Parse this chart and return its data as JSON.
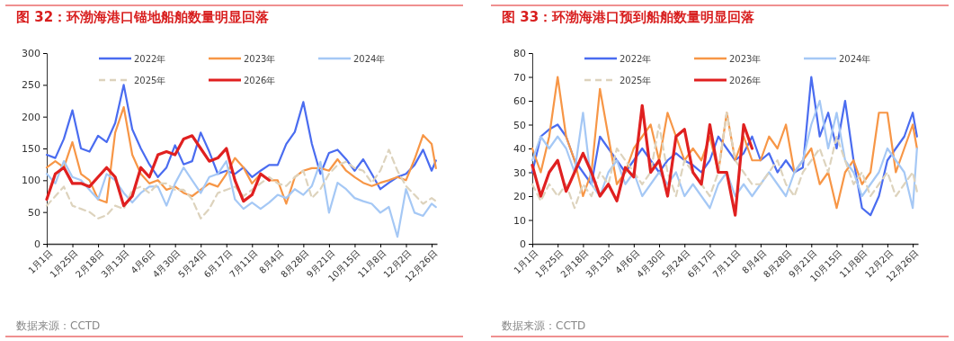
{
  "chart_data": [
    {
      "type": "line",
      "title": "图 32：环渤海港口锚地船舶数量明显回落",
      "annotations": [
        "数据来源：CCTD"
      ],
      "legend": "top",
      "grid": false,
      "x": [
        "--01-01",
        "--01-09",
        "--01-17",
        "--01-25",
        "--02-02",
        "--02-10",
        "--02-18",
        "--02-26",
        "--03-05",
        "--03-13",
        "--03-21",
        "--03-29",
        "--04-06",
        "--04-14",
        "--04-22",
        "--04-30",
        "--05-08",
        "--05-16",
        "--05-24",
        "--06-01",
        "--06-09",
        "--06-17",
        "--06-25",
        "--07-03",
        "--07-11",
        "--07-19",
        "--07-27",
        "--08-04",
        "--08-12",
        "--08-20",
        "--08-28",
        "--09-05",
        "--09-13",
        "--09-21",
        "--09-29",
        "--10-07",
        "--10-15",
        "--10-23",
        "--10-31",
        "--11-08",
        "--11-16",
        "--11-24",
        "--12-02",
        "--12-10",
        "--12-18",
        "--12-26",
        "--12-30"
      ],
      "xlim": [
        "--01-01",
        "--12-31"
      ],
      "xticks": [
        {
          "value": "--01-01",
          "label": "1月1日"
        },
        {
          "value": "--01-25",
          "label": "1月25日"
        },
        {
          "value": "--02-18",
          "label": "2月18日"
        },
        {
          "value": "--03-13",
          "label": "3月13日"
        },
        {
          "value": "--04-06",
          "label": "4月6日"
        },
        {
          "value": "--04-30",
          "label": "4月30日"
        },
        {
          "value": "--05-24",
          "label": "5月24日"
        },
        {
          "value": "--06-17",
          "label": "6月17日"
        },
        {
          "value": "--07-11",
          "label": "7月11日"
        },
        {
          "value": "--08-04",
          "label": "8月4日"
        },
        {
          "value": "--08-28",
          "label": "8月28日"
        },
        {
          "value": "--09-21",
          "label": "9月21日"
        },
        {
          "value": "--10-15",
          "label": "10月15日"
        },
        {
          "value": "--11-08",
          "label": "11月8日"
        },
        {
          "value": "--12-02",
          "label": "12月2日"
        },
        {
          "value": "--12-26",
          "label": "12月26日"
        }
      ],
      "ylim": [
        0,
        300
      ],
      "yticks": [
        0,
        50,
        100,
        150,
        200,
        250,
        300
      ],
      "series": [
        {
          "name": "2022年",
          "color": "#4a6cf0",
          "line_style": "solid",
          "values": [
            140,
            135,
            165,
            210,
            150,
            145,
            170,
            160,
            190,
            250,
            180,
            150,
            125,
            105,
            120,
            155,
            125,
            130,
            175,
            145,
            110,
            115,
            110,
            120,
            105,
            115,
            124,
            124,
            157,
            176,
            223,
            157,
            110,
            143,
            148,
            133,
            115,
            133,
            110,
            86,
            96,
            105,
            110,
            124,
            148,
            115,
            131
          ]
        },
        {
          "name": "2023年",
          "color": "#f79646",
          "line_style": "solid",
          "values": [
            120,
            130,
            120,
            160,
            110,
            100,
            70,
            65,
            175,
            215,
            140,
            110,
            95,
            100,
            85,
            90,
            80,
            75,
            85,
            95,
            90,
            110,
            135,
            120,
            95,
            110,
            100,
            100,
            63,
            105,
            115,
            119,
            119,
            115,
            133,
            115,
            105,
            96,
            91,
            96,
            100,
            105,
            100,
            133,
            171,
            157,
            119
          ]
        },
        {
          "name": "2024年",
          "color": "#a5c8f5",
          "line_style": "solid",
          "values": [
            110,
            95,
            130,
            105,
            100,
            85,
            70,
            110,
            100,
            80,
            65,
            80,
            90,
            90,
            60,
            95,
            120,
            100,
            80,
            105,
            110,
            130,
            70,
            55,
            65,
            55,
            65,
            77,
            72,
            86,
            77,
            91,
            129,
            49,
            96,
            86,
            72,
            67,
            63,
            49,
            58,
            11,
            86,
            49,
            44,
            63,
            58
          ]
        },
        {
          "name": "2025年",
          "color": "#ddd3bd",
          "line_style": "dashed",
          "values": [
            60,
            75,
            90,
            60,
            55,
            50,
            40,
            45,
            60,
            55,
            85,
            90,
            80,
            95,
            95,
            85,
            85,
            70,
            40,
            55,
            80,
            85,
            90,
            75,
            85,
            95,
            105,
            95,
            91,
            105,
            115,
            72,
            86,
            110,
            124,
            129,
            119,
            115,
            96,
            115,
            148,
            115,
            91,
            77,
            63,
            72,
            67
          ]
        },
        {
          "name": "2026年",
          "color": "#e02020",
          "line_style": "solid",
          "values": [
            70,
            110,
            120,
            95,
            95,
            90,
            105,
            120,
            105,
            60,
            75,
            120,
            105,
            140,
            145,
            140,
            165,
            170,
            150,
            130,
            135,
            150,
            100,
            67,
            77,
            110,
            100,
            null,
            null,
            null,
            null,
            null,
            null,
            null,
            null,
            null,
            null,
            null,
            null,
            null,
            null,
            null,
            null,
            null,
            null,
            null,
            null
          ]
        }
      ]
    },
    {
      "type": "line",
      "title": "图 33：环渤海港口预到船舶数量明显回落",
      "annotations": [
        "数据来源：CCTD"
      ],
      "legend": "top",
      "grid": false,
      "x": [
        "--01-01",
        "--01-09",
        "--01-17",
        "--01-25",
        "--02-02",
        "--02-10",
        "--02-18",
        "--02-26",
        "--03-05",
        "--03-13",
        "--03-21",
        "--03-29",
        "--04-06",
        "--04-14",
        "--04-22",
        "--04-30",
        "--05-08",
        "--05-16",
        "--05-24",
        "--06-01",
        "--06-09",
        "--06-17",
        "--06-25",
        "--07-03",
        "--07-11",
        "--07-19",
        "--07-27",
        "--08-04",
        "--08-12",
        "--08-20",
        "--08-28",
        "--09-05",
        "--09-13",
        "--09-21",
        "--09-29",
        "--10-07",
        "--10-15",
        "--10-23",
        "--10-31",
        "--11-08",
        "--11-16",
        "--11-24",
        "--12-02",
        "--12-10",
        "--12-18",
        "--12-26",
        "--12-30"
      ],
      "xlim": [
        "--01-01",
        "--12-31"
      ],
      "xticks": [
        {
          "value": "--01-01",
          "label": "1月1日"
        },
        {
          "value": "--01-25",
          "label": "1月25日"
        },
        {
          "value": "--02-18",
          "label": "2月18日"
        },
        {
          "value": "--03-13",
          "label": "3月13日"
        },
        {
          "value": "--04-06",
          "label": "4月6日"
        },
        {
          "value": "--04-30",
          "label": "4月30日"
        },
        {
          "value": "--05-24",
          "label": "5月24日"
        },
        {
          "value": "--06-17",
          "label": "6月17日"
        },
        {
          "value": "--07-11",
          "label": "7月11日"
        },
        {
          "value": "--08-04",
          "label": "8月4日"
        },
        {
          "value": "--08-28",
          "label": "8月28日"
        },
        {
          "value": "--09-21",
          "label": "9月21日"
        },
        {
          "value": "--10-15",
          "label": "10月15日"
        },
        {
          "value": "--11-08",
          "label": "11月8日"
        },
        {
          "value": "--12-02",
          "label": "12月2日"
        },
        {
          "value": "--12-26",
          "label": "12月26日"
        }
      ],
      "ylim": [
        0,
        80
      ],
      "yticks": [
        0,
        10,
        20,
        30,
        40,
        50,
        60,
        70,
        80
      ],
      "series": [
        {
          "name": "2022年",
          "color": "#4a6cf0",
          "line_style": "solid",
          "values": [
            30,
            45,
            48,
            50,
            45,
            35,
            30,
            25,
            45,
            40,
            35,
            30,
            35,
            40,
            35,
            30,
            35,
            38,
            35,
            33,
            30,
            35,
            45,
            40,
            35,
            38,
            45,
            35,
            38,
            30,
            35,
            30,
            32,
            70,
            45,
            55,
            40,
            60,
            35,
            15,
            12,
            20,
            35,
            40,
            45,
            55,
            45
          ]
        },
        {
          "name": "2023年",
          "color": "#f79646",
          "line_style": "solid",
          "values": [
            40,
            30,
            45,
            70,
            45,
            35,
            20,
            30,
            65,
            45,
            25,
            30,
            40,
            45,
            50,
            35,
            55,
            45,
            35,
            40,
            35,
            45,
            30,
            55,
            35,
            45,
            35,
            35,
            45,
            40,
            50,
            30,
            35,
            40,
            25,
            30,
            15,
            30,
            35,
            25,
            30,
            55,
            55,
            30,
            40,
            50,
            40
          ]
        },
        {
          "name": "2024年",
          "color": "#a5c8f5",
          "line_style": "solid",
          "values": [
            35,
            45,
            40,
            45,
            40,
            30,
            55,
            25,
            20,
            30,
            35,
            25,
            30,
            20,
            25,
            30,
            25,
            30,
            20,
            25,
            20,
            15,
            25,
            30,
            20,
            25,
            20,
            25,
            30,
            25,
            20,
            30,
            35,
            50,
            60,
            40,
            55,
            35,
            30,
            20,
            25,
            30,
            40,
            35,
            30,
            15,
            40
          ]
        },
        {
          "name": "2025年",
          "color": "#ddd3bd",
          "line_style": "dashed",
          "values": [
            25,
            18,
            25,
            20,
            25,
            15,
            25,
            20,
            30,
            25,
            40,
            35,
            30,
            25,
            30,
            50,
            30,
            20,
            35,
            30,
            25,
            20,
            30,
            55,
            35,
            30,
            25,
            25,
            30,
            35,
            25,
            20,
            30,
            35,
            40,
            30,
            45,
            35,
            25,
            30,
            20,
            25,
            30,
            20,
            25,
            30,
            22
          ]
        },
        {
          "name": "2026年",
          "color": "#e02020",
          "line_style": "solid",
          "values": [
            33,
            20,
            30,
            35,
            22,
            30,
            38,
            30,
            20,
            25,
            18,
            32,
            28,
            58,
            30,
            35,
            20,
            45,
            48,
            30,
            25,
            50,
            30,
            30,
            12,
            50,
            40,
            null,
            null,
            null,
            null,
            null,
            null,
            null,
            null,
            null,
            null,
            null,
            null,
            null,
            null,
            null,
            null,
            null,
            null,
            null,
            null
          ]
        }
      ]
    }
  ]
}
